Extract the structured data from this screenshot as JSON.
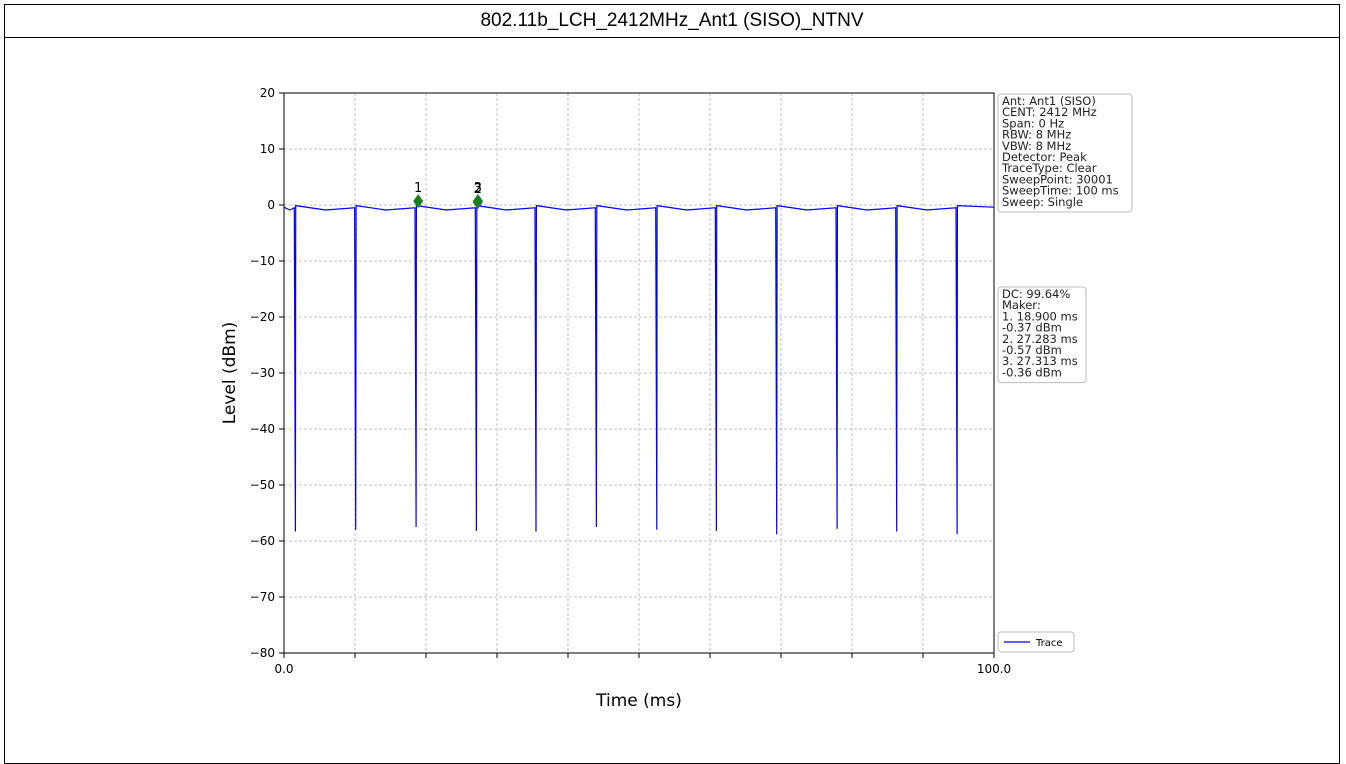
{
  "title": "802.11b_LCH_2412MHz_Ant1 (SISO)_NTNV",
  "settings_box": [
    "Ant: Ant1 (SISO)",
    "CENT: 2412 MHz",
    "Span: 0 Hz",
    "RBW: 8 MHz",
    "VBW: 8 MHz",
    "Detector: Peak",
    "TraceType: Clear",
    "SweepPoint: 30001",
    "SweepTime: 100 ms",
    "Sweep: Single"
  ],
  "marker_box": [
    "DC: 99.64%",
    "Maker:",
    "1. 18.900 ms",
    "    -0.37 dBm",
    "2. 27.283 ms",
    "    -0.57 dBm",
    "3. 27.313 ms",
    "    -0.36 dBm"
  ],
  "chart_data": {
    "type": "line",
    "xlabel": "Time (ms)",
    "ylabel": "Level (dBm)",
    "xlim": [
      0,
      100
    ],
    "ylim": [
      -80,
      20
    ],
    "x_tick_labels": [
      "0.0",
      "100.0"
    ],
    "x_minor_ticks": [
      10,
      20,
      30,
      40,
      50,
      60,
      70,
      80,
      90
    ],
    "y_ticks": [
      20,
      10,
      0,
      -10,
      -20,
      -30,
      -40,
      -50,
      -60,
      -70,
      -80
    ],
    "y_tick_labels": [
      "20",
      "10",
      "0",
      "−10",
      "−20",
      "−30",
      "−40",
      "−50",
      "−60",
      "−70",
      "−80"
    ],
    "grid": true,
    "legend": {
      "position": "bottom-right",
      "entries": [
        "Trace"
      ]
    },
    "series": [
      {
        "name": "Trace",
        "color": "#0000ff",
        "baseline_dbm": -0.4,
        "dips": [
          {
            "x": 1.6,
            "y": -58.3
          },
          {
            "x": 10.1,
            "y": -58.0
          },
          {
            "x": 18.6,
            "y": -57.5
          },
          {
            "x": 27.1,
            "y": -58.2
          },
          {
            "x": 35.5,
            "y": -58.3
          },
          {
            "x": 44.0,
            "y": -57.5
          },
          {
            "x": 52.5,
            "y": -58.0
          },
          {
            "x": 60.9,
            "y": -58.2
          },
          {
            "x": 69.4,
            "y": -58.8
          },
          {
            "x": 77.9,
            "y": -57.8
          },
          {
            "x": 86.3,
            "y": -58.3
          },
          {
            "x": 94.8,
            "y": -58.8
          }
        ]
      }
    ],
    "markers": [
      {
        "label": "1",
        "x": 18.9,
        "y": -0.37
      },
      {
        "label": "2",
        "x": 27.283,
        "y": -0.57
      },
      {
        "label": "3",
        "x": 27.313,
        "y": -0.36
      }
    ],
    "marker_color": "#1a7f1a"
  }
}
